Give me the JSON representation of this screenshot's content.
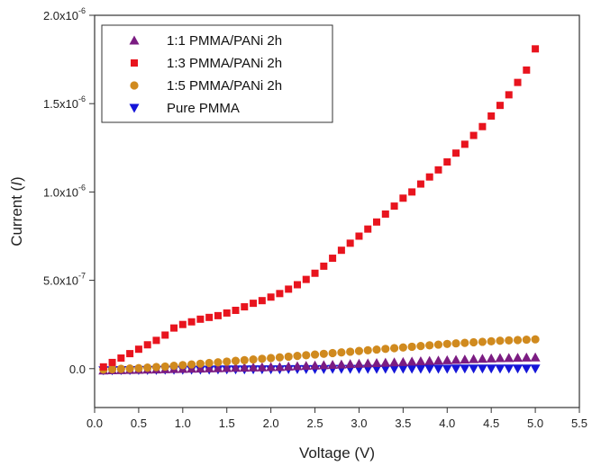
{
  "chart_data": {
    "type": "scatter",
    "xlabel": "Voltage (V)",
    "ylabel_prefix": "Current (",
    "ylabel_var": "I",
    "ylabel_suffix": ")",
    "xlim": [
      0.0,
      5.5
    ],
    "ylim": [
      -2.2e-07,
      2e-06
    ],
    "x_ticks": [
      "0.0",
      "0.5",
      "1.0",
      "1.5",
      "2.0",
      "2.5",
      "3.0",
      "3.5",
      "4.0",
      "4.5",
      "5.0",
      "5.5"
    ],
    "y_ticks": [
      {
        "mantissa": "0.0",
        "exp": ""
      },
      {
        "mantissa": "5.0x10",
        "exp": "-7"
      },
      {
        "mantissa": "1.0x10",
        "exp": "-6"
      },
      {
        "mantissa": "1.5x10",
        "exp": "-6"
      },
      {
        "mantissa": "2.0x10",
        "exp": "-6"
      }
    ],
    "grid": false,
    "legend_position": "top-left",
    "x": [
      0.1,
      0.2,
      0.3,
      0.4,
      0.5,
      0.6,
      0.7,
      0.8,
      0.9,
      1.0,
      1.1,
      1.2,
      1.3,
      1.4,
      1.5,
      1.6,
      1.7,
      1.8,
      1.9,
      2.0,
      2.1,
      2.2,
      2.3,
      2.4,
      2.5,
      2.6,
      2.7,
      2.8,
      2.9,
      3.0,
      3.1,
      3.2,
      3.3,
      3.4,
      3.5,
      3.6,
      3.7,
      3.8,
      3.9,
      4.0,
      4.1,
      4.2,
      4.3,
      4.4,
      4.5,
      4.6,
      4.7,
      4.8,
      4.9,
      5.0
    ],
    "series": [
      {
        "name": "1:1 PMMA/PANi 2h",
        "marker": "triangle-up",
        "color": "#7B1C82",
        "values": [
          -1e-08,
          -9e-09,
          -8e-09,
          -7e-09,
          -6e-09,
          -5e-09,
          -4e-09,
          -3e-09,
          -2e-09,
          -1e-09,
          0,
          1e-09,
          2e-09,
          3e-09,
          4e-09,
          5e-09,
          6e-09,
          7e-09,
          8e-09,
          9e-09,
          1e-08,
          1.2e-08,
          1.4e-08,
          1.6e-08,
          1.8e-08,
          2e-08,
          2.2e-08,
          2.4e-08,
          2.6e-08,
          2.8e-08,
          3e-08,
          3.2e-08,
          3.4e-08,
          3.6e-08,
          3.8e-08,
          4e-08,
          4.2e-08,
          4.4e-08,
          4.6e-08,
          4.8e-08,
          5e-08,
          5.2e-08,
          5.4e-08,
          5.6e-08,
          5.8e-08,
          6e-08,
          6.1e-08,
          6.2e-08,
          6.3e-08,
          6.4e-08
        ]
      },
      {
        "name": "1:3 PMMA/PANi 2h",
        "marker": "square",
        "color": "#E8141E",
        "values": [
          1e-08,
          3.5e-08,
          6e-08,
          8.5e-08,
          1.1e-07,
          1.35e-07,
          1.6e-07,
          1.9e-07,
          2.3e-07,
          2.5e-07,
          2.65e-07,
          2.8e-07,
          2.9e-07,
          3e-07,
          3.15e-07,
          3.3e-07,
          3.5e-07,
          3.7e-07,
          3.85e-07,
          4.05e-07,
          4.25e-07,
          4.5e-07,
          4.75e-07,
          5.05e-07,
          5.4e-07,
          5.8e-07,
          6.25e-07,
          6.7e-07,
          7.1e-07,
          7.5e-07,
          7.9e-07,
          8.3e-07,
          8.75e-07,
          9.2e-07,
          9.65e-07,
          1e-06,
          1.045e-06,
          1.085e-06,
          1.125e-06,
          1.17e-06,
          1.22e-06,
          1.27e-06,
          1.32e-06,
          1.37e-06,
          1.43e-06,
          1.49e-06,
          1.55e-06,
          1.62e-06,
          1.69e-06,
          1.81e-06
        ]
      },
      {
        "name": "1:5 PMMA/PANi 2h",
        "marker": "circle",
        "color": "#D08A1E",
        "values": [
          -5e-09,
          -3e-09,
          -1e-09,
          1e-09,
          3e-09,
          6e-09,
          9e-09,
          1.2e-08,
          1.6e-08,
          2e-08,
          2.4e-08,
          2.8e-08,
          3.2e-08,
          3.6e-08,
          4e-08,
          4.4e-08,
          4.8e-08,
          5.2e-08,
          5.6e-08,
          6e-08,
          6.4e-08,
          6.8e-08,
          7.2e-08,
          7.6e-08,
          8e-08,
          8.4e-08,
          8.8e-08,
          9.2e-08,
          9.6e-08,
          1e-07,
          1.04e-07,
          1.08e-07,
          1.12e-07,
          1.16e-07,
          1.2e-07,
          1.24e-07,
          1.28e-07,
          1.32e-07,
          1.36e-07,
          1.4e-07,
          1.43e-07,
          1.46e-07,
          1.49e-07,
          1.52e-07,
          1.55e-07,
          1.58e-07,
          1.6e-07,
          1.62e-07,
          1.64e-07,
          1.66e-07
        ]
      },
      {
        "name": "Pure PMMA",
        "marker": "triangle-down",
        "color": "#1515D8",
        "values": [
          -1e-08,
          -1e-08,
          -9e-09,
          -9e-09,
          -8e-09,
          -8e-09,
          -8e-09,
          -7e-09,
          -7e-09,
          -7e-09,
          -6e-09,
          -6e-09,
          -6e-09,
          -5e-09,
          -5e-09,
          -5e-09,
          -5e-09,
          -4e-09,
          -4e-09,
          -4e-09,
          -4e-09,
          -3e-09,
          -3e-09,
          -3e-09,
          -3e-09,
          -3e-09,
          -2e-09,
          -2e-09,
          -2e-09,
          -2e-09,
          -2e-09,
          -2e-09,
          -1e-09,
          -1e-09,
          -1e-09,
          -1e-09,
          -1e-09,
          -1e-09,
          -1e-09,
          -1e-09,
          0,
          0,
          0,
          0,
          0,
          0,
          0,
          0,
          0,
          0
        ]
      }
    ]
  }
}
